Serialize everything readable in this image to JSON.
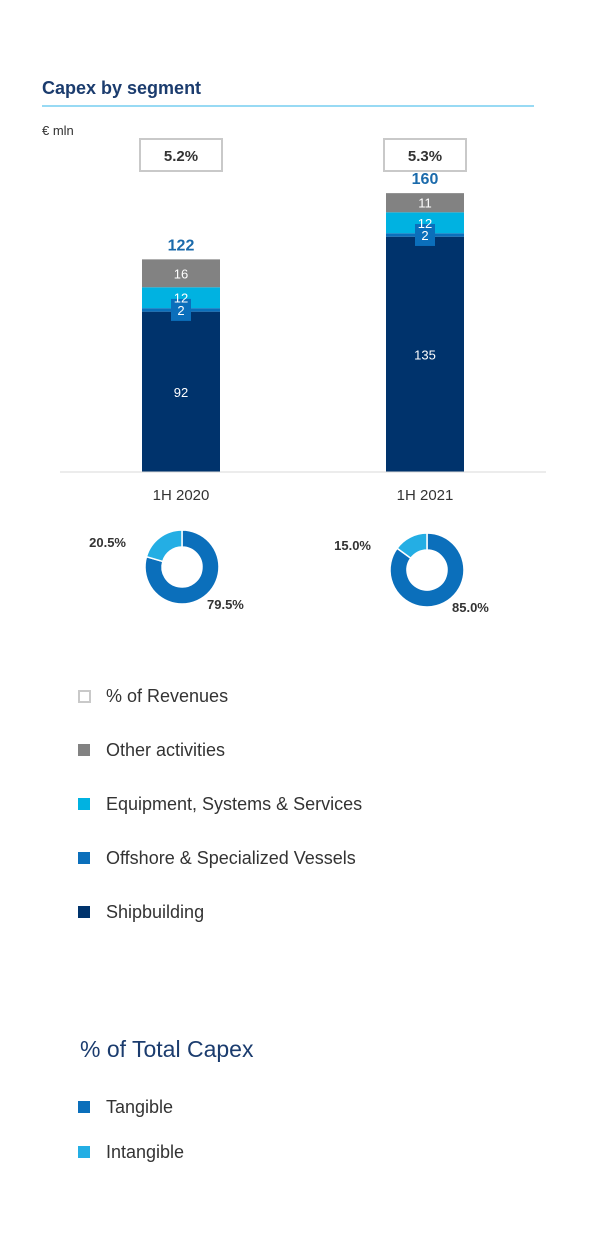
{
  "title": "Capex by segment",
  "unit": "€ mln",
  "colors": {
    "shipbuilding": "#00336c",
    "offshore": "#0b6fbb",
    "equipment": "#00b2e1",
    "other": "#828282",
    "tangible": "#0b6fbb",
    "intangible": "#24aee4",
    "title": "#1b3c6e",
    "total": "#1a6aab"
  },
  "chart_data": [
    {
      "type": "bar",
      "stacked": true,
      "categories": [
        "1H 2020",
        "1H 2021"
      ],
      "series": [
        {
          "name": "Shipbuilding",
          "values": [
            92,
            135
          ]
        },
        {
          "name": "Offshore & Specialized Vessels",
          "values": [
            2,
            2
          ]
        },
        {
          "name": "Equipment, Systems & Services",
          "values": [
            12,
            12
          ]
        },
        {
          "name": "Other activities",
          "values": [
            16,
            11
          ]
        }
      ],
      "totals": [
        122,
        160
      ],
      "total_labels": [
        "122",
        "160"
      ],
      "pct_of_revenues": [
        "5.2%",
        "5.3%"
      ],
      "value_labels": [
        [
          "92",
          "2",
          "12",
          "16"
        ],
        [
          "135",
          "2",
          "12",
          "11"
        ]
      ],
      "ylim": [
        0,
        175
      ]
    },
    {
      "type": "pie",
      "donut": true,
      "title": "1H 2020",
      "labels": [
        "Tangible",
        "Intangible"
      ],
      "values": [
        79.5,
        20.5
      ],
      "value_labels": [
        "79.5%",
        "20.5%"
      ]
    },
    {
      "type": "pie",
      "donut": true,
      "title": "1H 2021",
      "labels": [
        "Tangible",
        "Intangible"
      ],
      "values": [
        85.0,
        15.0
      ],
      "value_labels": [
        "85.0%",
        "15.0%"
      ]
    }
  ],
  "legend": [
    {
      "label": "% of Revenues",
      "icon": "hollow-square-icon"
    },
    {
      "label": "Other activities",
      "icon": "square-icon",
      "color": "#828282"
    },
    {
      "label": "Equipment, Systems & Services",
      "icon": "square-icon",
      "color": "#00b2e1"
    },
    {
      "label": "Offshore & Specialized Vessels",
      "icon": "square-icon",
      "color": "#0b6fbb"
    },
    {
      "label": "Shipbuilding",
      "icon": "square-icon",
      "color": "#00336c"
    }
  ],
  "total_capex": {
    "title": "% of Total Capex",
    "legend": [
      {
        "label": "Tangible",
        "color": "#0b6fbb"
      },
      {
        "label": "Intangible",
        "color": "#24aee4"
      }
    ]
  }
}
